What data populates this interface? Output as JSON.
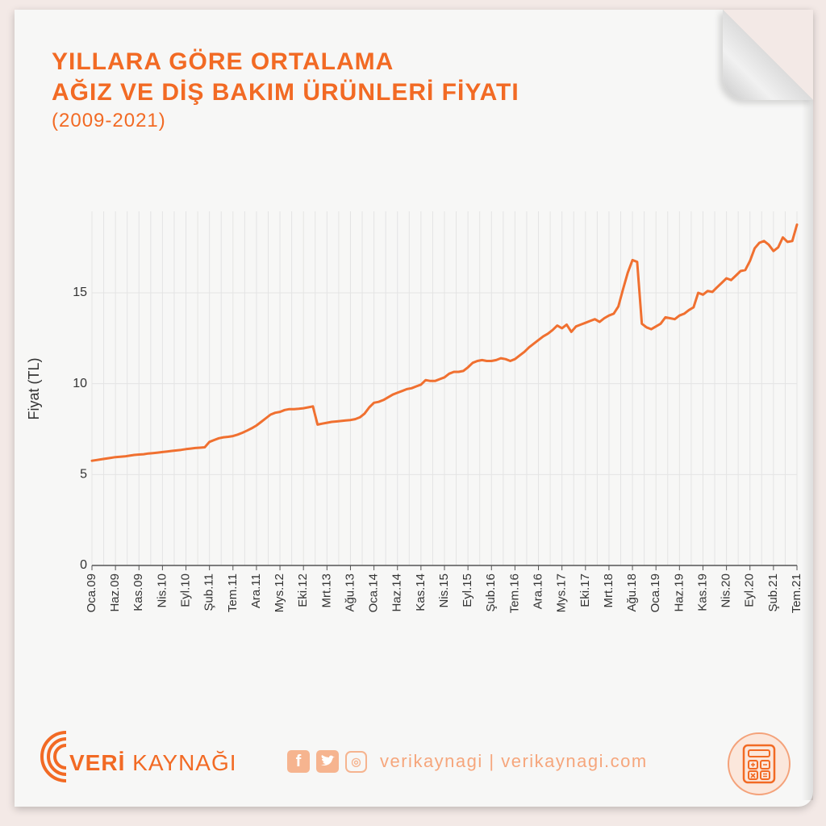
{
  "title_line1": "YILLARA GÖRE ORTALAMA",
  "title_line2": "AĞIZ VE DİŞ BAKIM ÜRÜNLERİ FİYATI",
  "subtitle": "(2009-2021)",
  "footer": {
    "brand_bold": "VERİ",
    "brand_rest": " KAYNAĞI",
    "links_text": "verikaynagi | verikaynagi.com",
    "facebook_icon": "facebook-icon",
    "twitter_icon": "twitter-icon",
    "instagram_icon": "instagram-icon",
    "calculator_icon": "calculator-icon"
  },
  "colors": {
    "accent": "#f26a24",
    "line": "#f07030",
    "grid": "#e4e4e4"
  },
  "chart_data": {
    "type": "line",
    "title": "",
    "xlabel": "",
    "ylabel": "Fiyat (TL)",
    "ylim": [
      0,
      19.5
    ],
    "yticks": [
      0,
      5,
      10,
      15
    ],
    "grid": true,
    "xtick_labels": [
      "Oca.09",
      "Haz.09",
      "Kas.09",
      "Nis.10",
      "Eyl.10",
      "Şub.11",
      "Tem.11",
      "Ara.11",
      "Mys.12",
      "Eki.12",
      "Mrt.13",
      "Ağu.13",
      "Oca.14",
      "Haz.14",
      "Kas.14",
      "Nis.15",
      "Eyl.15",
      "Şub.16",
      "Tem.16",
      "Ara.16",
      "Mys.17",
      "Eki.17",
      "Mrt.18",
      "Ağu.18",
      "Oca.19",
      "Haz.19",
      "Kas.19",
      "Nis.20",
      "Eyl.20",
      "Şub.21",
      "Tem.21"
    ],
    "series": [
      {
        "values": [
          5.76,
          5.8,
          5.84,
          5.88,
          5.92,
          5.96,
          5.98,
          6.0,
          6.04,
          6.08,
          6.1,
          6.12,
          6.16,
          6.18,
          6.21,
          6.24,
          6.27,
          6.3,
          6.33,
          6.36,
          6.4,
          6.43,
          6.46,
          6.48,
          6.5,
          6.8,
          6.9,
          7.0,
          7.05,
          7.08,
          7.12,
          7.2,
          7.3,
          7.42,
          7.55,
          7.7,
          7.9,
          8.1,
          8.3,
          8.4,
          8.45,
          8.55,
          8.6,
          8.6,
          8.62,
          8.65,
          8.7,
          8.75,
          7.75,
          7.8,
          7.85,
          7.9,
          7.92,
          7.95,
          7.98,
          8.0,
          8.05,
          8.15,
          8.35,
          8.7,
          8.95,
          9.0,
          9.1,
          9.25,
          9.4,
          9.5,
          9.6,
          9.7,
          9.75,
          9.85,
          9.95,
          10.2,
          10.15,
          10.15,
          10.25,
          10.35,
          10.55,
          10.65,
          10.65,
          10.7,
          10.9,
          11.15,
          11.25,
          11.3,
          11.25,
          11.25,
          11.3,
          11.4,
          11.35,
          11.25,
          11.35,
          11.55,
          11.75,
          12.0,
          12.2,
          12.4,
          12.6,
          12.75,
          12.95,
          13.2,
          13.05,
          13.25,
          12.85,
          13.15,
          13.25,
          13.35,
          13.45,
          13.55,
          13.4,
          13.6,
          13.75,
          13.85,
          14.25,
          15.2,
          16.1,
          16.8,
          16.7,
          13.3,
          13.1,
          13.0,
          13.15,
          13.3,
          13.65,
          13.6,
          13.55,
          13.75,
          13.85,
          14.05,
          14.2,
          15.0,
          14.9,
          15.1,
          15.05,
          15.3,
          15.55,
          15.8,
          15.7,
          15.95,
          16.2,
          16.25,
          16.75,
          17.45,
          17.75,
          17.85,
          17.65,
          17.3,
          17.5,
          18.05,
          17.8,
          17.85,
          18.75
        ]
      }
    ]
  }
}
